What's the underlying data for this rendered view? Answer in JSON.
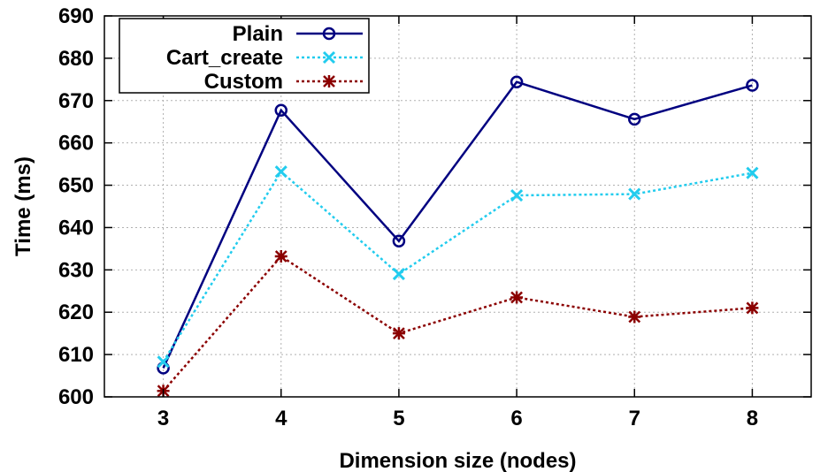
{
  "chart_data": {
    "type": "line",
    "title": "",
    "xlabel": "Dimension size (nodes)",
    "ylabel": "Time (ms)",
    "x": [
      3,
      4,
      5,
      6,
      7,
      8
    ],
    "xlim": [
      2.5,
      8.5
    ],
    "ylim": [
      600,
      690
    ],
    "yticks": [
      600,
      610,
      620,
      630,
      640,
      650,
      660,
      670,
      680,
      690
    ],
    "grid": true,
    "legend_position": "top-left",
    "series": [
      {
        "name": "Plain",
        "values": [
          606.8,
          667.7,
          636.8,
          674.4,
          665.6,
          673.6
        ],
        "color": "#000080",
        "marker": "circle",
        "dash": "solid"
      },
      {
        "name": "Cart_create",
        "values": [
          608.3,
          653.2,
          629.0,
          647.6,
          647.9,
          652.9
        ],
        "color": "#22ccee",
        "marker": "x",
        "dash": "dotted"
      },
      {
        "name": "Custom",
        "values": [
          601.4,
          633.2,
          615.0,
          623.5,
          618.9,
          621.0
        ],
        "color": "#8b0000",
        "marker": "star",
        "dash": "dotted"
      }
    ]
  }
}
